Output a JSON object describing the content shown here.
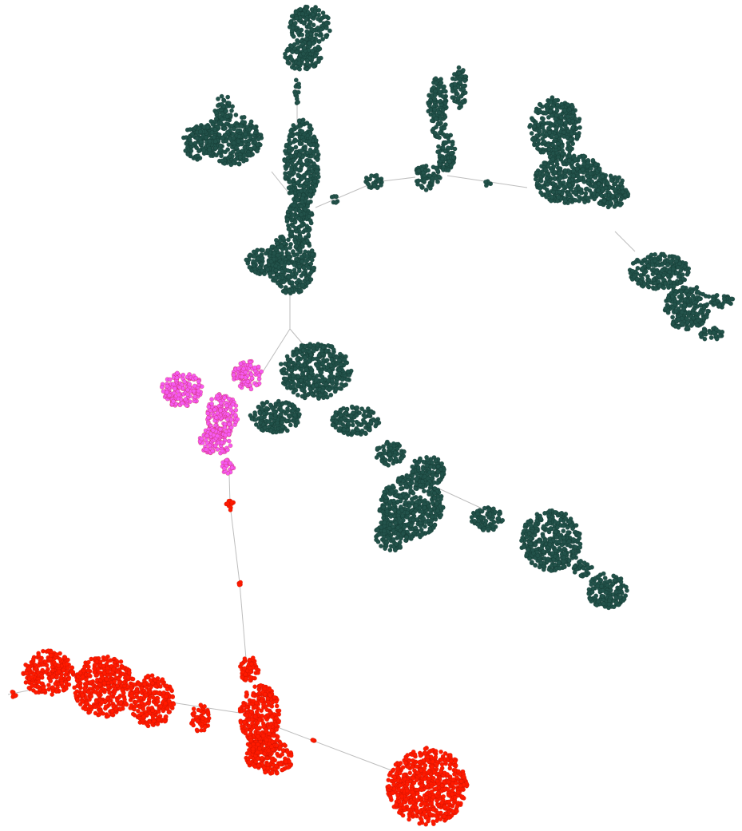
{
  "palette": [
    "#22524a",
    "#ff1a00",
    "#f55af0"
  ]
}
